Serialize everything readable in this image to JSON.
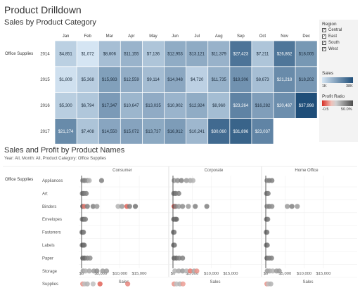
{
  "page_title": "Product Drilldown",
  "heatmap": {
    "subtitle": "Sales by Product Category",
    "row_group_label": "Office Supplies",
    "months": [
      "Jan",
      "Feb",
      "Mar",
      "Apr",
      "May",
      "Jun",
      "Jul",
      "Aug",
      "Sep",
      "Oct",
      "Nov",
      "Dec"
    ],
    "years": [
      "2014",
      "2015",
      "2016",
      "2017"
    ],
    "values": [
      [
        "$4,851",
        "$1,072",
        "$8,606",
        "$11,155",
        "$7,136",
        "$12,953",
        "$13,121",
        "$11,379",
        "$27,423",
        "$7,211",
        "$26,862",
        "$18,005"
      ],
      [
        "$1,809",
        "$5,368",
        "$15,983",
        "$12,559",
        "$9,114",
        "$14,048",
        "$4,720",
        "$11,735",
        "$19,306",
        "$8,673",
        "$21,218",
        "$18,202"
      ],
      [
        "$5,300",
        "$6,794",
        "$17,347",
        "$10,647",
        "$13,035",
        "$10,902",
        "$12,924",
        "$8,960",
        "$23,264",
        "$16,282",
        "$20,487",
        "$37,998"
      ],
      [
        "$21,274",
        "$7,408",
        "$14,550",
        "$15,072",
        "$13,737",
        "$16,912",
        "$10,241",
        "$30,060",
        "$31,896",
        "$23,037",
        "",
        ""
      ]
    ],
    "numeric": [
      [
        4851,
        1072,
        8606,
        11155,
        7136,
        12953,
        13121,
        11379,
        27423,
        7211,
        26862,
        18005
      ],
      [
        1809,
        5368,
        15983,
        12559,
        9114,
        14048,
        4720,
        11735,
        19306,
        8673,
        21218,
        18202
      ],
      [
        5300,
        6794,
        17347,
        10647,
        13035,
        10902,
        12924,
        8960,
        23264,
        16282,
        20487,
        37998
      ],
      [
        21274,
        7408,
        14550,
        15072,
        13737,
        16912,
        10241,
        30060,
        31896,
        23037,
        null,
        null
      ]
    ]
  },
  "legend": {
    "region_title": "Region",
    "regions": [
      "Central",
      "East",
      "South",
      "West"
    ],
    "sales_title": "Sales",
    "sales_min": "1K",
    "sales_max": "38K",
    "profit_title": "Profit Ratio",
    "profit_min": "-0.5",
    "profit_max": "50.0%",
    "sales_color_min": "#d6e6f4",
    "sales_color_max": "#1f4e79",
    "profit_color_neg": "#d73027",
    "profit_color_pos": "#4d4d4d"
  },
  "dotplot": {
    "title": "Sales and Profit by Product Names",
    "filter_text": "Year: All, Month: All, Product Category: Office Supplies",
    "row_group_label": "Office Supplies",
    "segments": [
      "Consumer",
      "Corporate",
      "Home Office"
    ],
    "rows": [
      "Appliances",
      "Art",
      "Binders",
      "Envelopes",
      "Fasteners",
      "Labels",
      "Paper",
      "Storage",
      "Supplies"
    ],
    "x_ticks": [
      "$0",
      "$5,000",
      "$10,000",
      "$15,000"
    ],
    "x_tick_values": [
      0,
      5000,
      10000,
      15000
    ],
    "x_label": "Sales",
    "points": {
      "Consumer": {
        "Appliances": [
          [
            300,
            0.2
          ],
          [
            800,
            0.3
          ],
          [
            1500,
            0.25
          ],
          [
            2000,
            0.1
          ],
          [
            5200,
            0.3
          ]
        ],
        "Art": [
          [
            200,
            0.3
          ],
          [
            600,
            0.35
          ],
          [
            1200,
            0.3
          ]
        ],
        "Binders": [
          [
            300,
            0.4
          ],
          [
            700,
            -0.2
          ],
          [
            1500,
            0.3
          ],
          [
            3000,
            0.3
          ],
          [
            4000,
            0.2
          ],
          [
            9500,
            0.1
          ],
          [
            10500,
            0.2
          ],
          [
            11800,
            -0.3
          ],
          [
            12500,
            0.3
          ],
          [
            14000,
            0.35
          ]
        ],
        "Envelopes": [
          [
            200,
            0.3
          ],
          [
            600,
            0.4
          ],
          [
            1000,
            0.3
          ]
        ],
        "Fasteners": [
          [
            100,
            0.3
          ],
          [
            300,
            0.35
          ],
          [
            500,
            0.3
          ]
        ],
        "Labels": [
          [
            150,
            0.3
          ],
          [
            400,
            0.4
          ],
          [
            700,
            0.35
          ]
        ],
        "Paper": [
          [
            300,
            0.35
          ],
          [
            800,
            0.4
          ],
          [
            1500,
            0.3
          ],
          [
            2200,
            0.25
          ]
        ],
        "Storage": [
          [
            400,
            0.2
          ],
          [
            1000,
            0.1
          ],
          [
            2000,
            0.15
          ],
          [
            3200,
            0.2
          ],
          [
            4000,
            0.25
          ],
          [
            5500,
            0.2
          ],
          [
            6500,
            0.2
          ]
        ],
        "Supplies": [
          [
            300,
            -0.1
          ],
          [
            800,
            0.05
          ],
          [
            1500,
            0.1
          ],
          [
            3000,
            0.05
          ],
          [
            4800,
            -0.3
          ],
          [
            12000,
            -0.15
          ]
        ]
      },
      "Corporate": {
        "Appliances": [
          [
            300,
            0.2
          ],
          [
            1200,
            0.25
          ],
          [
            2200,
            0.3
          ],
          [
            3500,
            0.2
          ],
          [
            4500,
            0.15
          ],
          [
            5200,
            0.1
          ]
        ],
        "Art": [
          [
            200,
            0.3
          ],
          [
            700,
            0.35
          ],
          [
            1500,
            0.3
          ]
        ],
        "Binders": [
          [
            300,
            -0.4
          ],
          [
            700,
            0.3
          ],
          [
            1500,
            0.2
          ],
          [
            2500,
            0.25
          ],
          [
            4000,
            0.2
          ],
          [
            5800,
            0.3
          ],
          [
            8800,
            0.3
          ]
        ],
        "Envelopes": [
          [
            200,
            0.35
          ],
          [
            600,
            0.3
          ],
          [
            900,
            0.4
          ]
        ],
        "Fasteners": [
          [
            100,
            0.3
          ],
          [
            300,
            0.3
          ]
        ],
        "Labels": [
          [
            150,
            0.35
          ],
          [
            400,
            0.3
          ]
        ],
        "Paper": [
          [
            300,
            0.35
          ],
          [
            900,
            0.4
          ],
          [
            1600,
            0.3
          ],
          [
            2500,
            0.3
          ]
        ],
        "Storage": [
          [
            500,
            0.1
          ],
          [
            1500,
            0.15
          ],
          [
            2500,
            0.2
          ],
          [
            3500,
            0.1
          ],
          [
            4500,
            -0.2
          ],
          [
            5500,
            0.15
          ],
          [
            6200,
            -0.1
          ]
        ],
        "Supplies": [
          [
            300,
            -0.1
          ],
          [
            900,
            0.05
          ],
          [
            1800,
            0.1
          ],
          [
            2600,
            -0.05
          ]
        ]
      },
      "Home Office": {
        "Appliances": [
          [
            300,
            0.2
          ],
          [
            900,
            0.3
          ],
          [
            1600,
            0.3
          ]
        ],
        "Art": [
          [
            200,
            0.3
          ],
          [
            600,
            0.3
          ]
        ],
        "Binders": [
          [
            300,
            0.2
          ],
          [
            900,
            0.3
          ],
          [
            1600,
            0.25
          ],
          [
            5600,
            0.2
          ],
          [
            6800,
            0.3
          ],
          [
            8200,
            0.2
          ]
        ],
        "Envelopes": [
          [
            200,
            0.35
          ],
          [
            500,
            0.3
          ]
        ],
        "Fasteners": [
          [
            100,
            0.3
          ],
          [
            300,
            0.3
          ]
        ],
        "Labels": [
          [
            150,
            0.35
          ],
          [
            400,
            0.3
          ]
        ],
        "Paper": [
          [
            300,
            0.35
          ],
          [
            900,
            0.3
          ],
          [
            1500,
            0.3
          ]
        ],
        "Storage": [
          [
            400,
            0.2
          ],
          [
            1000,
            0.15
          ],
          [
            1800,
            0.1
          ],
          [
            2800,
            0.2
          ],
          [
            3500,
            0.2
          ]
        ],
        "Supplies": [
          [
            300,
            -0.1
          ],
          [
            700,
            0.05
          ],
          [
            1300,
            0.1
          ]
        ]
      }
    }
  }
}
